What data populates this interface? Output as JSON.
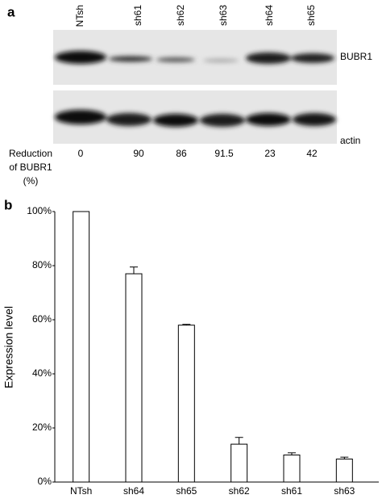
{
  "panel_a": {
    "label": "a",
    "lanes": [
      "NTsh",
      "sh61",
      "sh62",
      "sh63",
      "sh64",
      "sh65"
    ],
    "bands": [
      "BUBR1",
      "actin"
    ],
    "reduction_label": [
      "Reduction",
      "of BUBR1",
      "(%)"
    ],
    "reduction_values": [
      0,
      90,
      86,
      91.5,
      23,
      42
    ]
  },
  "chart_data": {
    "type": "bar",
    "label": "b",
    "ylabel": "Expression level",
    "categories": [
      "NTsh",
      "sh64",
      "sh65",
      "sh62",
      "sh61",
      "sh63"
    ],
    "values": [
      100,
      77,
      58,
      14,
      10,
      8.5
    ],
    "errors": [
      0,
      2.5,
      0.3,
      2.5,
      0.8,
      0.7
    ],
    "color": "#ffffff",
    "ylim": [
      0,
      100
    ],
    "yticks": [
      {
        "value": 0,
        "label": "0%"
      },
      {
        "value": 20,
        "label": "20%"
      },
      {
        "value": 40,
        "label": "40%"
      },
      {
        "value": 60,
        "label": "60%"
      },
      {
        "value": 80,
        "label": "80%"
      },
      {
        "value": 100,
        "label": "100%"
      }
    ]
  }
}
